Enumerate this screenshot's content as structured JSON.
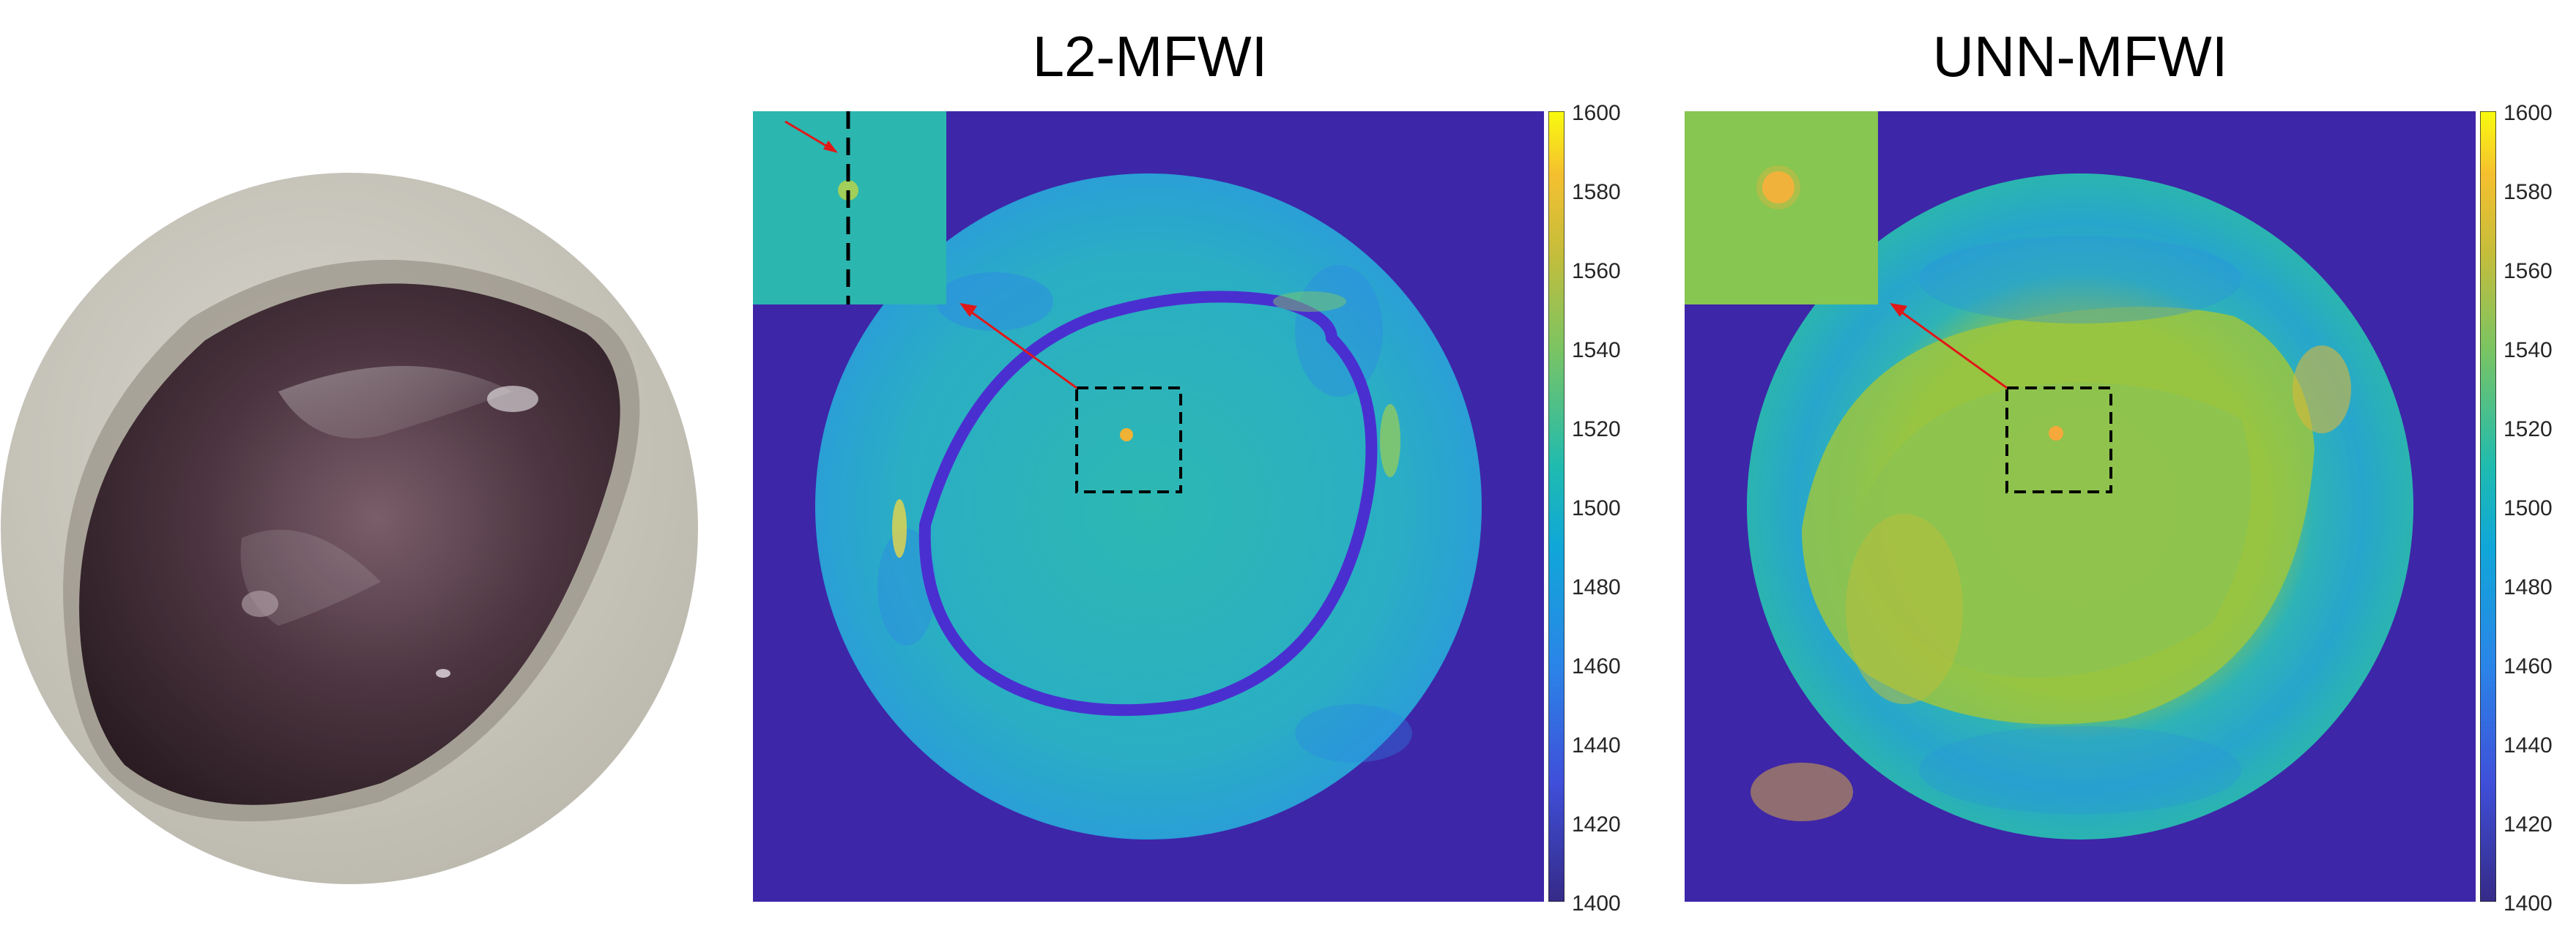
{
  "figure": {
    "photo": {
      "subject": "photo-of-breast-phantom"
    },
    "panels": [
      {
        "id": "l2",
        "title": "L2-MFWI"
      },
      {
        "id": "unn",
        "title": "UNN-MFWI"
      }
    ],
    "colorbar": {
      "ticks": [
        "1600",
        "1580",
        "1560",
        "1540",
        "1520",
        "1500",
        "1480",
        "1460",
        "1440",
        "1420",
        "1400"
      ],
      "min": 1400,
      "max": 1600,
      "colormap": "parula"
    },
    "colors": {
      "background_outside": "#3e26a8",
      "l2_disk": "#2fb2b9",
      "l2_ring": "#4a2fd0",
      "unn_disk_outer": "#25a8c4",
      "unn_disk_inner": "#8cc54b",
      "inclusion": "#f6a83a",
      "arrow": "#e01818"
    }
  }
}
